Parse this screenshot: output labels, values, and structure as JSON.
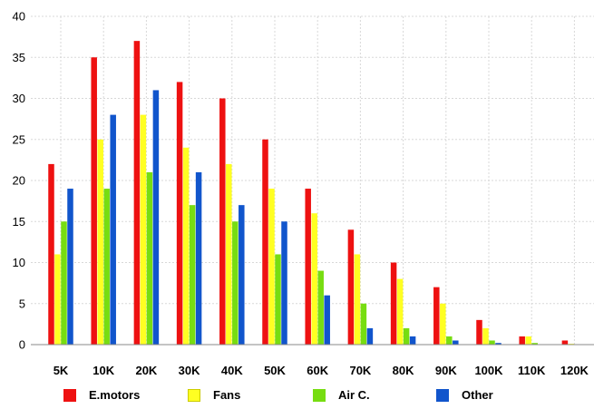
{
  "chart_data": {
    "type": "bar",
    "categories": [
      "5K",
      "10K",
      "20K",
      "30K",
      "40K",
      "50K",
      "60K",
      "70K",
      "80K",
      "90K",
      "100K",
      "110K",
      "120K"
    ],
    "series": [
      {
        "name": "E.motors",
        "color": "#ee1111",
        "values": [
          22,
          35,
          37,
          32,
          30,
          25,
          19,
          14,
          10,
          7,
          3,
          1,
          0.5
        ]
      },
      {
        "name": "Fans",
        "color": "#ffff22",
        "values": [
          11,
          25,
          28,
          24,
          22,
          19,
          16,
          11,
          8,
          5,
          2,
          1,
          0.1
        ]
      },
      {
        "name": "Air C.",
        "color": "#77dd11",
        "values": [
          15,
          19,
          21,
          17,
          15,
          11,
          9,
          5,
          2,
          1,
          0.5,
          0.2,
          0
        ]
      },
      {
        "name": "Other",
        "color": "#1155cc",
        "values": [
          19,
          28,
          31,
          21,
          17,
          15,
          6,
          2,
          1,
          0.5,
          0.2,
          0,
          0
        ]
      }
    ],
    "yticks": [
      "0",
      "5",
      "10",
      "15",
      "20",
      "25",
      "30",
      "35",
      "40"
    ],
    "ylim": [
      0,
      40
    ],
    "grid": true,
    "legend_position": "bottom"
  }
}
